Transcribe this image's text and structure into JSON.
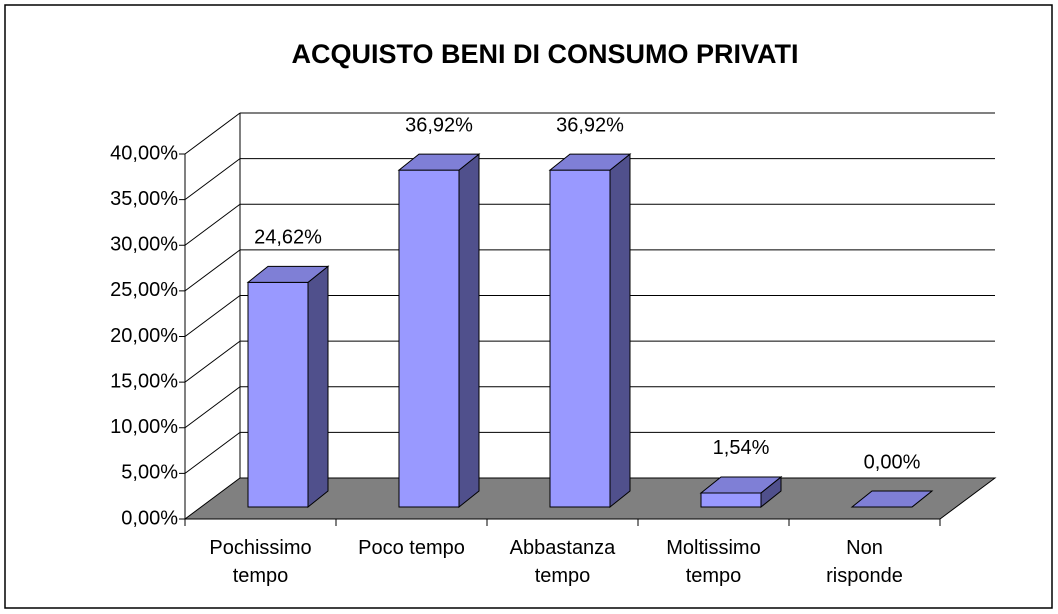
{
  "chart_data": {
    "type": "bar3d",
    "title": "ACQUISTO BENI DI CONSUMO PRIVATI",
    "categories": [
      "Pochissimo tempo",
      "Poco tempo",
      "Abbastanza tempo",
      "Moltissimo tempo",
      "Non risponde"
    ],
    "values": [
      24.62,
      36.92,
      36.92,
      1.54,
      0
    ],
    "value_labels": [
      "24,62%",
      "36,92%",
      "36,92%",
      "1,54%",
      "0,00%"
    ],
    "color": "#9999ff",
    "ylim": [
      0,
      40
    ],
    "yticks": [
      {
        "value": 0,
        "label": "0,00%"
      },
      {
        "value": 5,
        "label": "5,00%"
      },
      {
        "value": 10,
        "label": "10,00%"
      },
      {
        "value": 15,
        "label": "15,00%"
      },
      {
        "value": 20,
        "label": "20,00%"
      },
      {
        "value": 25,
        "label": "25,00%"
      },
      {
        "value": 30,
        "label": "30,00%"
      },
      {
        "value": 35,
        "label": "35,00%"
      },
      {
        "value": 40,
        "label": "40,00%"
      }
    ],
    "grid": true
  }
}
